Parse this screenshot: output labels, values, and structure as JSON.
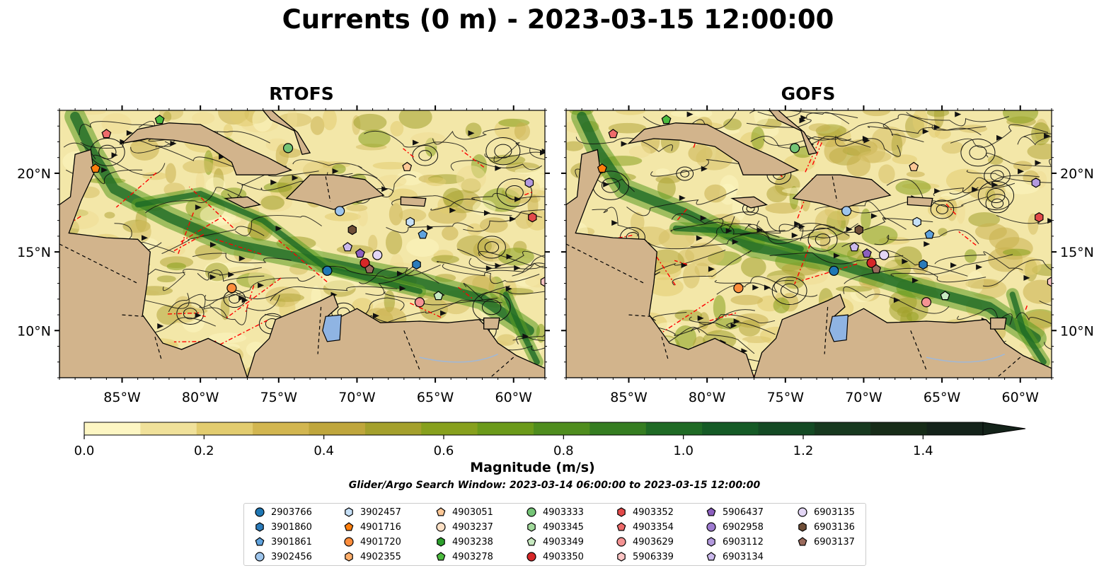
{
  "title": "Currents (0 m) - 2023-03-15 12:00:00",
  "panels": [
    {
      "name": "RTOFS"
    },
    {
      "name": "GOFS"
    }
  ],
  "axes": {
    "lon_ticks": [
      "85°W",
      "80°W",
      "75°W",
      "70°W",
      "65°W",
      "60°W"
    ],
    "lat_ticks": [
      "20°N",
      "15°N",
      "10°N"
    ]
  },
  "colors": {
    "land": "#d2b48c",
    "water_low": "#fbf5c0",
    "boundary": "#ff0000",
    "lake": "#8fb4e3"
  },
  "colorbar": {
    "label": "Magnitude (m/s)",
    "ticks": [
      "0.0",
      "0.2",
      "0.4",
      "0.6",
      "0.8",
      "1.0",
      "1.2",
      "1.4"
    ],
    "colors": [
      "#fdf6c3",
      "#f0e19a",
      "#e2cc6f",
      "#d2b650",
      "#bfa63c",
      "#a4a02c",
      "#87a01d",
      "#6b9a1a",
      "#4f8d1e",
      "#357d21",
      "#1f6a25",
      "#155a26",
      "#144a24",
      "#17391f",
      "#172c18",
      "#14231a"
    ],
    "extend": "max"
  },
  "search_window": "Glider/Argo Search Window: 2023-03-14 06:00:00 to 2023-03-15 12:00:00",
  "legend": [
    {
      "id": "2903766",
      "color": "#1f77b4",
      "shape": "circle"
    },
    {
      "id": "3901860",
      "color": "#2b7bba",
      "shape": "hexagon"
    },
    {
      "id": "3901861",
      "color": "#5fa2dd",
      "shape": "pentagon"
    },
    {
      "id": "3902456",
      "color": "#9ec5ec",
      "shape": "circle"
    },
    {
      "id": "3902457",
      "color": "#c6e0f7",
      "shape": "hexagon"
    },
    {
      "id": "4901716",
      "color": "#ff7f0e",
      "shape": "pentagon"
    },
    {
      "id": "4901720",
      "color": "#fd8d3c",
      "shape": "circle"
    },
    {
      "id": "4902355",
      "color": "#fdae6b",
      "shape": "hexagon"
    },
    {
      "id": "4903051",
      "color": "#fdc896",
      "shape": "pentagon"
    },
    {
      "id": "4903237",
      "color": "#fde0c5",
      "shape": "circle"
    },
    {
      "id": "4903238",
      "color": "#2ca02c",
      "shape": "hexagon"
    },
    {
      "id": "4903278",
      "color": "#4cbb3f",
      "shape": "pentagon"
    },
    {
      "id": "4903333",
      "color": "#74c476",
      "shape": "circle"
    },
    {
      "id": "4903345",
      "color": "#a1d99b",
      "shape": "hexagon"
    },
    {
      "id": "4903349",
      "color": "#c7e9c0",
      "shape": "pentagon"
    },
    {
      "id": "4903350",
      "color": "#d62728",
      "shape": "circle"
    },
    {
      "id": "4903352",
      "color": "#e34a4a",
      "shape": "hexagon"
    },
    {
      "id": "4903354",
      "color": "#ee6b6b",
      "shape": "pentagon"
    },
    {
      "id": "4903629",
      "color": "#f49393",
      "shape": "circle"
    },
    {
      "id": "5906339",
      "color": "#fbc4c4",
      "shape": "hexagon"
    },
    {
      "id": "5906437",
      "color": "#8c5fbf",
      "shape": "pentagon"
    },
    {
      "id": "6902958",
      "color": "#9e7bd0",
      "shape": "circle"
    },
    {
      "id": "6903112",
      "color": "#b39ade",
      "shape": "hexagon"
    },
    {
      "id": "6903134",
      "color": "#cbb9ec",
      "shape": "pentagon"
    },
    {
      "id": "6903135",
      "color": "#e3d6f5",
      "shape": "circle"
    },
    {
      "id": "6903136",
      "color": "#6f4e37",
      "shape": "hexagon"
    },
    {
      "id": "6903137",
      "color": "#9a6a5c",
      "shape": "pentagon"
    }
  ],
  "chart_data": {
    "type": "heatmap",
    "title": "Currents (0 m) - 2023-03-15 12:00:00",
    "variable": "Magnitude (m/s)",
    "lon_range": [
      -89,
      -58
    ],
    "lat_range": [
      7,
      24
    ],
    "colorbar_range": [
      0.0,
      1.5
    ],
    "panels": [
      "RTOFS",
      "GOFS"
    ],
    "floats": [
      {
        "id": "4901716",
        "lon": -86.7,
        "lat": 20.3
      },
      {
        "id": "4903354",
        "lon": -86.0,
        "lat": 22.5
      },
      {
        "id": "4903278",
        "lon": -82.6,
        "lat": 23.4
      },
      {
        "id": "4903333",
        "lon": -74.4,
        "lat": 21.6
      },
      {
        "id": "4903051",
        "lon": -66.8,
        "lat": 20.4
      },
      {
        "id": "6903112",
        "lon": -59.0,
        "lat": 19.4
      },
      {
        "id": "4903352",
        "lon": -58.8,
        "lat": 17.2
      },
      {
        "id": "3902456",
        "lon": -71.1,
        "lat": 17.6
      },
      {
        "id": "3902457",
        "lon": -66.6,
        "lat": 16.9
      },
      {
        "id": "3901861",
        "lon": -65.8,
        "lat": 16.1
      },
      {
        "id": "6903136",
        "lon": -70.3,
        "lat": 16.4
      },
      {
        "id": "6903134",
        "lon": -70.6,
        "lat": 15.3
      },
      {
        "id": "5906437",
        "lon": -69.8,
        "lat": 14.9
      },
      {
        "id": "6903135",
        "lon": -68.7,
        "lat": 14.8
      },
      {
        "id": "4903350",
        "lon": -69.5,
        "lat": 14.3
      },
      {
        "id": "6903137",
        "lon": -69.2,
        "lat": 13.9
      },
      {
        "id": "3901860",
        "lon": -66.2,
        "lat": 14.2
      },
      {
        "id": "2903766",
        "lon": -71.9,
        "lat": 13.8
      },
      {
        "id": "4901720",
        "lon": -78.0,
        "lat": 12.7
      },
      {
        "id": "4903349",
        "lon": -64.8,
        "lat": 12.2
      },
      {
        "id": "4903629",
        "lon": -66.0,
        "lat": 11.8
      },
      {
        "id": "5906339",
        "lon": -58.0,
        "lat": 13.1
      }
    ]
  }
}
